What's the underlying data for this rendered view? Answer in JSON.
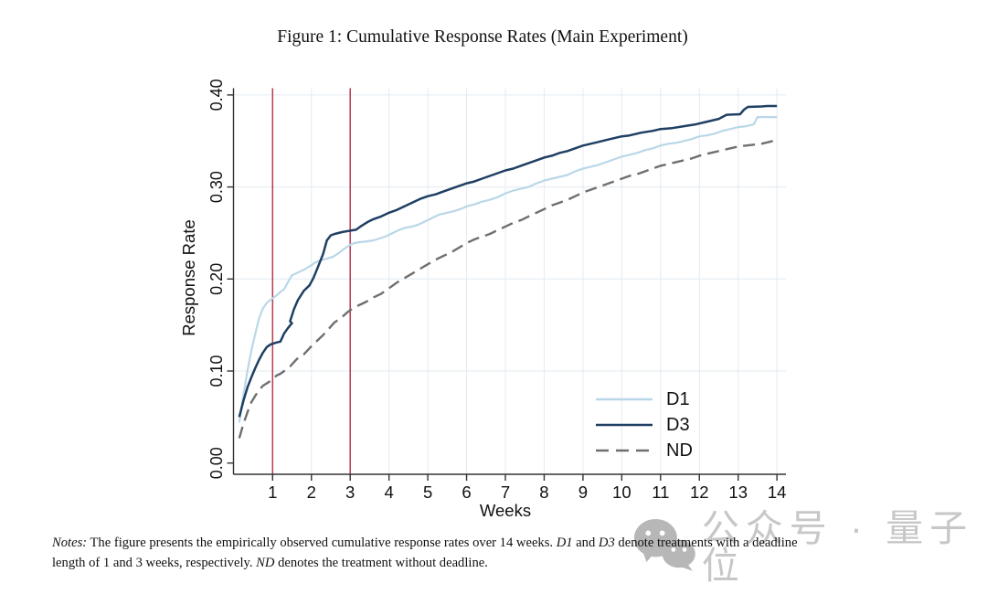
{
  "title": "Figure 1: Cumulative Response Rates (Main Experiment)",
  "chart_data": {
    "type": "line",
    "title": "Figure 1: Cumulative Response Rates (Main Experiment)",
    "xlabel": "Weeks",
    "ylabel": "Response Rate",
    "xlim": [
      0,
      14.25
    ],
    "ylim": [
      0.0,
      0.42
    ],
    "grid": true,
    "grid_color": "#e2ecf1",
    "axis_color": "#333333",
    "x_ticks": [
      1,
      2,
      3,
      4,
      5,
      6,
      7,
      8,
      9,
      10,
      11,
      12,
      13,
      14
    ],
    "y_ticks": [
      {
        "v": 0.0,
        "label": "0.00"
      },
      {
        "v": 0.1,
        "label": "0.10"
      },
      {
        "v": 0.2,
        "label": "0.20"
      },
      {
        "v": 0.3,
        "label": "0.30"
      },
      {
        "v": 0.4,
        "label": "0.40"
      }
    ],
    "reference_lines": {
      "x_values": [
        1,
        3
      ],
      "color": "#b63a52",
      "meaning": "deadline weeks"
    },
    "legend_position": "inside-bottom-right",
    "series": [
      {
        "name": "D1",
        "color": "#b9d7e8",
        "dash": null,
        "width": 2.2,
        "points": [
          [
            0.14,
            0.044
          ],
          [
            0.25,
            0.075
          ],
          [
            0.35,
            0.1
          ],
          [
            0.45,
            0.122
          ],
          [
            0.55,
            0.14
          ],
          [
            0.65,
            0.157
          ],
          [
            0.75,
            0.168
          ],
          [
            0.85,
            0.174
          ],
          [
            1.0,
            0.179
          ],
          [
            1.1,
            0.182
          ],
          [
            1.2,
            0.186
          ],
          [
            1.3,
            0.189
          ],
          [
            1.4,
            0.197
          ],
          [
            1.5,
            0.204
          ],
          [
            1.6,
            0.206
          ],
          [
            1.7,
            0.208
          ],
          [
            1.85,
            0.211
          ],
          [
            2.0,
            0.215
          ],
          [
            2.1,
            0.218
          ],
          [
            2.2,
            0.22
          ],
          [
            2.4,
            0.222
          ],
          [
            2.55,
            0.224
          ],
          [
            2.7,
            0.228
          ],
          [
            2.85,
            0.233
          ],
          [
            3.0,
            0.237
          ],
          [
            3.1,
            0.239
          ],
          [
            3.25,
            0.24
          ],
          [
            3.45,
            0.241
          ],
          [
            3.6,
            0.242
          ],
          [
            3.75,
            0.244
          ],
          [
            3.9,
            0.246
          ],
          [
            4.0,
            0.248
          ],
          [
            4.15,
            0.251
          ],
          [
            4.3,
            0.254
          ],
          [
            4.45,
            0.256
          ],
          [
            4.6,
            0.257
          ],
          [
            4.75,
            0.259
          ],
          [
            4.9,
            0.262
          ],
          [
            5.0,
            0.264
          ],
          [
            5.15,
            0.267
          ],
          [
            5.3,
            0.27
          ],
          [
            5.5,
            0.272
          ],
          [
            5.7,
            0.274
          ],
          [
            5.9,
            0.277
          ],
          [
            6.0,
            0.279
          ],
          [
            6.2,
            0.281
          ],
          [
            6.4,
            0.284
          ],
          [
            6.6,
            0.286
          ],
          [
            6.8,
            0.289
          ],
          [
            7.0,
            0.293
          ],
          [
            7.2,
            0.296
          ],
          [
            7.4,
            0.298
          ],
          [
            7.6,
            0.3
          ],
          [
            7.8,
            0.304
          ],
          [
            8.0,
            0.307
          ],
          [
            8.2,
            0.309
          ],
          [
            8.4,
            0.311
          ],
          [
            8.6,
            0.313
          ],
          [
            8.8,
            0.317
          ],
          [
            9.0,
            0.32
          ],
          [
            9.2,
            0.322
          ],
          [
            9.4,
            0.324
          ],
          [
            9.6,
            0.327
          ],
          [
            9.8,
            0.33
          ],
          [
            10.0,
            0.333
          ],
          [
            10.2,
            0.335
          ],
          [
            10.4,
            0.337
          ],
          [
            10.6,
            0.34
          ],
          [
            10.8,
            0.342
          ],
          [
            11.0,
            0.345
          ],
          [
            11.2,
            0.347
          ],
          [
            11.4,
            0.348
          ],
          [
            11.6,
            0.35
          ],
          [
            11.8,
            0.352
          ],
          [
            12.0,
            0.355
          ],
          [
            12.2,
            0.356
          ],
          [
            12.4,
            0.358
          ],
          [
            12.6,
            0.361
          ],
          [
            12.8,
            0.363
          ],
          [
            13.0,
            0.365
          ],
          [
            13.2,
            0.366
          ],
          [
            13.4,
            0.368
          ],
          [
            13.5,
            0.376
          ],
          [
            14.0,
            0.376
          ]
        ]
      },
      {
        "name": "D3",
        "color": "#1f3f63",
        "dash": null,
        "width": 2.5,
        "points": [
          [
            0.14,
            0.05
          ],
          [
            0.25,
            0.068
          ],
          [
            0.35,
            0.082
          ],
          [
            0.45,
            0.093
          ],
          [
            0.55,
            0.103
          ],
          [
            0.65,
            0.112
          ],
          [
            0.75,
            0.12
          ],
          [
            0.85,
            0.126
          ],
          [
            0.95,
            0.129
          ],
          [
            1.1,
            0.131
          ],
          [
            1.2,
            0.132
          ],
          [
            1.3,
            0.141
          ],
          [
            1.4,
            0.147
          ],
          [
            1.5,
            0.152
          ],
          [
            1.45,
            0.154
          ],
          [
            1.55,
            0.167
          ],
          [
            1.65,
            0.177
          ],
          [
            1.8,
            0.187
          ],
          [
            1.95,
            0.193
          ],
          [
            2.05,
            0.201
          ],
          [
            2.15,
            0.211
          ],
          [
            2.3,
            0.227
          ],
          [
            2.4,
            0.242
          ],
          [
            2.5,
            0.2475
          ],
          [
            2.6,
            0.249
          ],
          [
            2.8,
            0.251
          ],
          [
            3.0,
            0.2525
          ],
          [
            3.15,
            0.2535
          ],
          [
            3.3,
            0.258
          ],
          [
            3.45,
            0.262
          ],
          [
            3.6,
            0.265
          ],
          [
            3.8,
            0.268
          ],
          [
            4.0,
            0.272
          ],
          [
            4.2,
            0.275
          ],
          [
            4.4,
            0.279
          ],
          [
            4.6,
            0.283
          ],
          [
            4.8,
            0.287
          ],
          [
            5.0,
            0.29
          ],
          [
            5.2,
            0.292
          ],
          [
            5.4,
            0.295
          ],
          [
            5.6,
            0.298
          ],
          [
            5.8,
            0.301
          ],
          [
            6.0,
            0.304
          ],
          [
            6.2,
            0.306
          ],
          [
            6.4,
            0.309
          ],
          [
            6.6,
            0.312
          ],
          [
            6.8,
            0.315
          ],
          [
            7.0,
            0.318
          ],
          [
            7.2,
            0.32
          ],
          [
            7.4,
            0.323
          ],
          [
            7.6,
            0.326
          ],
          [
            7.8,
            0.329
          ],
          [
            8.0,
            0.332
          ],
          [
            8.2,
            0.334
          ],
          [
            8.4,
            0.337
          ],
          [
            8.6,
            0.339
          ],
          [
            8.8,
            0.342
          ],
          [
            9.0,
            0.345
          ],
          [
            9.2,
            0.347
          ],
          [
            9.4,
            0.349
          ],
          [
            9.6,
            0.351
          ],
          [
            9.8,
            0.353
          ],
          [
            10.0,
            0.355
          ],
          [
            10.2,
            0.356
          ],
          [
            10.5,
            0.359
          ],
          [
            10.8,
            0.361
          ],
          [
            11.0,
            0.363
          ],
          [
            11.3,
            0.364
          ],
          [
            11.6,
            0.366
          ],
          [
            11.9,
            0.368
          ],
          [
            12.1,
            0.37
          ],
          [
            12.3,
            0.372
          ],
          [
            12.5,
            0.374
          ],
          [
            12.7,
            0.3785
          ],
          [
            13.05,
            0.379
          ],
          [
            13.15,
            0.384
          ],
          [
            13.25,
            0.387
          ],
          [
            13.6,
            0.3875
          ],
          [
            13.75,
            0.388
          ],
          [
            14.0,
            0.388
          ]
        ]
      },
      {
        "name": "ND",
        "color": "#6f6f6f",
        "dash": "13,7",
        "width": 2.4,
        "points": [
          [
            0.14,
            0.027
          ],
          [
            0.25,
            0.043
          ],
          [
            0.35,
            0.055
          ],
          [
            0.45,
            0.066
          ],
          [
            0.55,
            0.073
          ],
          [
            0.65,
            0.079
          ],
          [
            0.75,
            0.084
          ],
          [
            0.9,
            0.088
          ],
          [
            1.0,
            0.091
          ],
          [
            1.1,
            0.095
          ],
          [
            1.2,
            0.097
          ],
          [
            1.3,
            0.1
          ],
          [
            1.45,
            0.105
          ],
          [
            1.6,
            0.112
          ],
          [
            1.7,
            0.116
          ],
          [
            1.8,
            0.118
          ],
          [
            2.0,
            0.127
          ],
          [
            2.15,
            0.133
          ],
          [
            2.3,
            0.139
          ],
          [
            2.45,
            0.146
          ],
          [
            2.6,
            0.153
          ],
          [
            2.75,
            0.157
          ],
          [
            2.9,
            0.163
          ],
          [
            3.0,
            0.166
          ],
          [
            3.2,
            0.171
          ],
          [
            3.4,
            0.175
          ],
          [
            3.6,
            0.18
          ],
          [
            3.8,
            0.184
          ],
          [
            4.0,
            0.19
          ],
          [
            4.2,
            0.196
          ],
          [
            4.4,
            0.201
          ],
          [
            4.6,
            0.206
          ],
          [
            4.8,
            0.211
          ],
          [
            5.0,
            0.216
          ],
          [
            5.2,
            0.221
          ],
          [
            5.4,
            0.225
          ],
          [
            5.6,
            0.229
          ],
          [
            5.8,
            0.234
          ],
          [
            6.0,
            0.239
          ],
          [
            6.2,
            0.243
          ],
          [
            6.4,
            0.246
          ],
          [
            6.6,
            0.249
          ],
          [
            6.8,
            0.253
          ],
          [
            7.0,
            0.257
          ],
          [
            7.2,
            0.261
          ],
          [
            7.4,
            0.264
          ],
          [
            7.6,
            0.268
          ],
          [
            7.8,
            0.272
          ],
          [
            8.0,
            0.276
          ],
          [
            8.2,
            0.28
          ],
          [
            8.4,
            0.283
          ],
          [
            8.6,
            0.286
          ],
          [
            8.8,
            0.29
          ],
          [
            9.0,
            0.294
          ],
          [
            9.2,
            0.297
          ],
          [
            9.4,
            0.3
          ],
          [
            9.6,
            0.303
          ],
          [
            9.8,
            0.306
          ],
          [
            10.0,
            0.309
          ],
          [
            10.2,
            0.312
          ],
          [
            10.4,
            0.314
          ],
          [
            10.6,
            0.317
          ],
          [
            10.8,
            0.32
          ],
          [
            11.0,
            0.323
          ],
          [
            11.2,
            0.325
          ],
          [
            11.4,
            0.327
          ],
          [
            11.6,
            0.329
          ],
          [
            11.8,
            0.331
          ],
          [
            12.0,
            0.334
          ],
          [
            12.2,
            0.336
          ],
          [
            12.4,
            0.338
          ],
          [
            12.6,
            0.34
          ],
          [
            12.8,
            0.342
          ],
          [
            13.0,
            0.344
          ],
          [
            13.2,
            0.345
          ],
          [
            13.4,
            0.346
          ],
          [
            13.6,
            0.347
          ],
          [
            13.8,
            0.349
          ],
          [
            14.0,
            0.351
          ]
        ]
      }
    ]
  },
  "notes": {
    "lines": [
      [
        {
          "t": "Notes:",
          "i": true
        },
        {
          "t": "  The figure presents the empirically observed cumulative response rates over 14 weeks.  ",
          "i": false
        },
        {
          "t": "D1",
          "i": true
        },
        {
          "t": " and ",
          "i": false
        },
        {
          "t": "D3",
          "i": true
        },
        {
          "t": " denote treatments with a deadline",
          "i": false
        }
      ],
      [
        {
          "t": "length of 1 and 3 weeks, respectively. ",
          "i": false
        },
        {
          "t": "ND",
          "i": true
        },
        {
          "t": " denotes the treatment without deadline.",
          "i": false
        }
      ]
    ]
  },
  "watermark": {
    "icon": "wechat-icon",
    "text": "公众号",
    "separator": "·",
    "text2": "量子位",
    "color": "#c7c7c7"
  }
}
